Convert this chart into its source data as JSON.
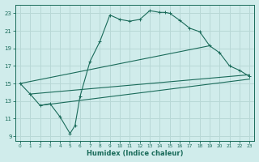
{
  "xlabel": "Humidex (Indice chaleur)",
  "bg_color": "#d0eceb",
  "line_color": "#1a6b5a",
  "grid_color": "#b8d8d6",
  "xlim": [
    -0.5,
    23.5
  ],
  "ylim": [
    8.5,
    24.0
  ],
  "yticks": [
    9,
    11,
    13,
    15,
    17,
    19,
    21,
    23
  ],
  "xticks": [
    0,
    1,
    2,
    3,
    4,
    5,
    6,
    7,
    8,
    9,
    10,
    11,
    12,
    13,
    14,
    15,
    16,
    17,
    18,
    19,
    20,
    21,
    22,
    23
  ],
  "series": [
    [
      0,
      15.0
    ],
    [
      1,
      13.8
    ],
    [
      2,
      12.5
    ],
    [
      3,
      12.7
    ],
    [
      4,
      11.2
    ],
    [
      5,
      9.3
    ],
    [
      5.5,
      10.2
    ],
    [
      6,
      13.5
    ],
    [
      7,
      17.5
    ],
    [
      8,
      19.8
    ],
    [
      9,
      22.8
    ],
    [
      10,
      22.3
    ],
    [
      11,
      22.1
    ],
    [
      12,
      22.3
    ],
    [
      13,
      23.3
    ],
    [
      14,
      23.1
    ],
    [
      14.5,
      23.1
    ],
    [
      15,
      23.0
    ],
    [
      16,
      22.2
    ],
    [
      17,
      21.3
    ],
    [
      18,
      20.9
    ],
    [
      19,
      19.3
    ],
    [
      20,
      18.5
    ],
    [
      21,
      17.0
    ],
    [
      22,
      16.5
    ],
    [
      23,
      15.8
    ]
  ],
  "line_upper": [
    [
      0,
      15.0
    ],
    [
      19,
      19.3
    ]
  ],
  "line_mid": [
    [
      1,
      13.8
    ],
    [
      23,
      16.0
    ]
  ],
  "line_lower": [
    [
      2,
      12.5
    ],
    [
      23,
      15.5
    ]
  ]
}
